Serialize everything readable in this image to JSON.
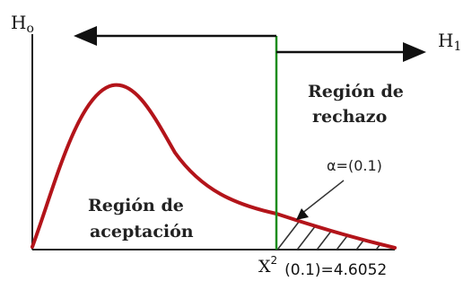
{
  "hypotheses": {
    "null_label": "H",
    "null_sub": "o",
    "alt_label": "H",
    "alt_sub": "1"
  },
  "regions": {
    "rejection_line1": "Región de",
    "rejection_line2": "rechazo",
    "acceptance_line1": "Región de",
    "acceptance_line2": "aceptación"
  },
  "alpha_label": "α=(0.1)",
  "critical": {
    "symbol": "X",
    "superscript": "2",
    "value_text": "(0.1)=4.6052"
  },
  "colors": {
    "curve": "#b3141a",
    "critical_line": "#1c8c1c",
    "axis": "#222222",
    "arrows": "#111111",
    "hatch": "#333333"
  }
}
